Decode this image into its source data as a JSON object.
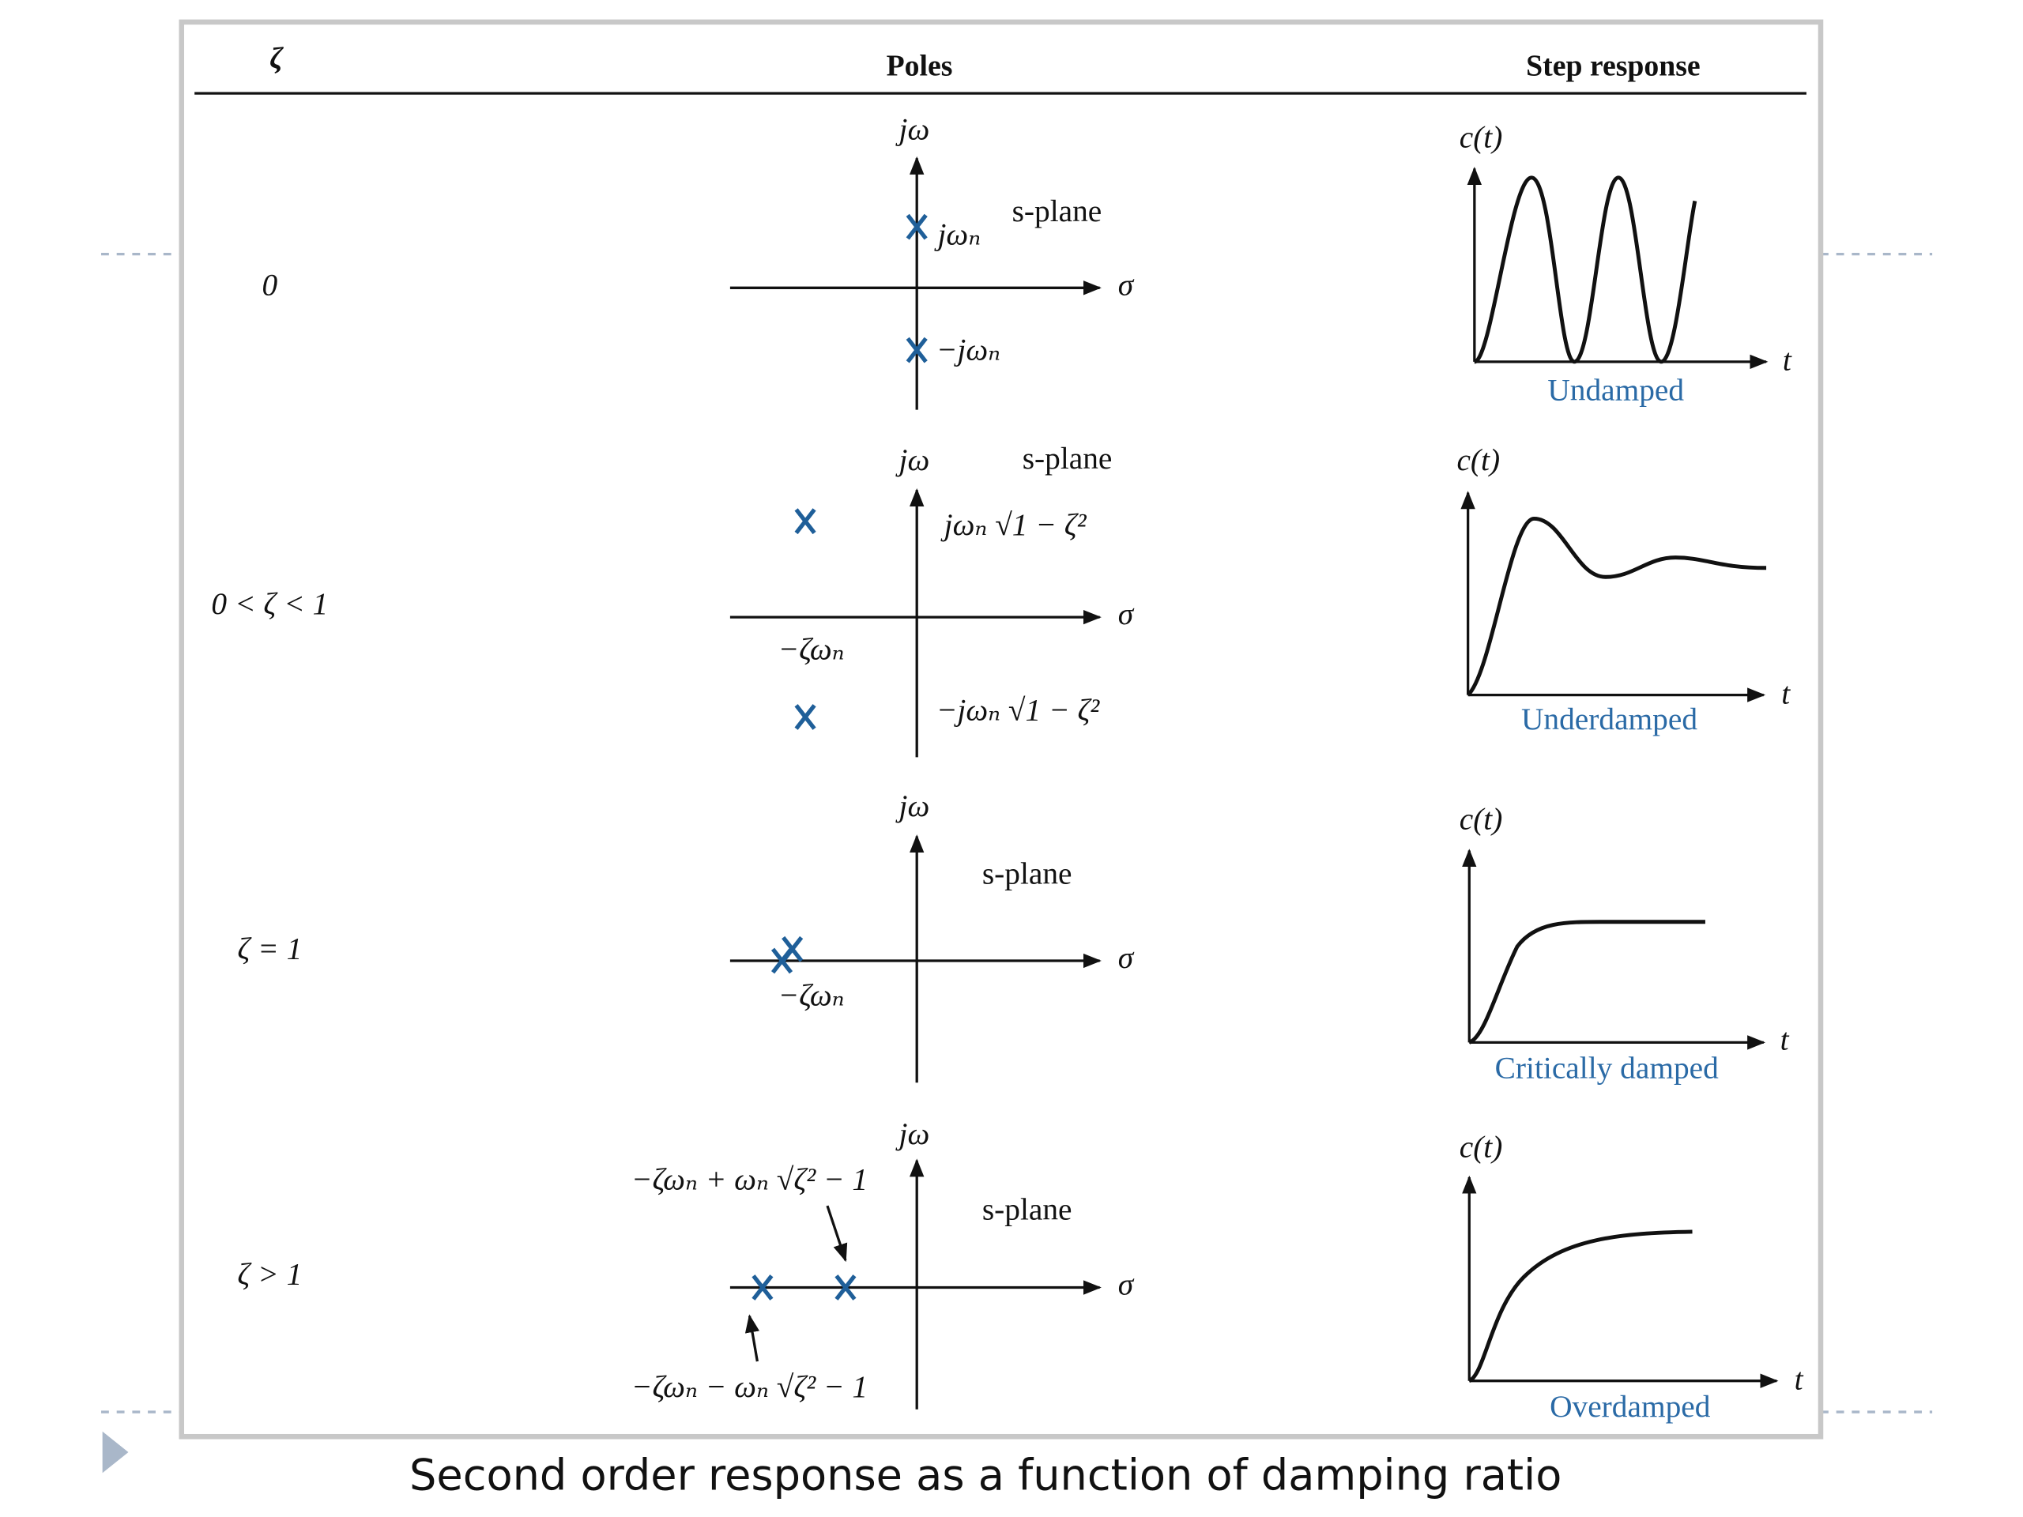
{
  "header": {
    "columns": [
      "ζ",
      "Poles",
      "Step response"
    ]
  },
  "rows": [
    {
      "zeta": "0",
      "poles": {
        "axis_y": "jω",
        "axis_x": "σ",
        "plane": "s-plane",
        "labels": [
          "jωₙ",
          "−jωₙ"
        ]
      },
      "response": {
        "y_label": "c(t)",
        "x_label": "t",
        "name": "Undamped"
      }
    },
    {
      "zeta": "0 < ζ < 1",
      "poles": {
        "axis_y": "jω",
        "axis_x": "σ",
        "plane": "s-plane",
        "labels": [
          "jωₙ √1 − ζ²",
          "−ζωₙ",
          "−jωₙ √1 − ζ²"
        ]
      },
      "response": {
        "y_label": "c(t)",
        "x_label": "t",
        "name": "Underdamped"
      }
    },
    {
      "zeta": "ζ = 1",
      "poles": {
        "axis_y": "jω",
        "axis_x": "σ",
        "plane": "s-plane",
        "labels": [
          "−ζωₙ"
        ]
      },
      "response": {
        "y_label": "c(t)",
        "x_label": "t",
        "name": "Critically damped"
      }
    },
    {
      "zeta": "ζ > 1",
      "poles": {
        "axis_y": "jω",
        "axis_x": "σ",
        "plane": "s-plane",
        "labels": [
          "−ζωₙ + ωₙ √ζ² − 1",
          "−ζωₙ − ωₙ √ζ² − 1"
        ]
      },
      "response": {
        "y_label": "c(t)",
        "x_label": "t",
        "name": "Overdamped"
      }
    }
  ],
  "caption": "Second order response as a function of damping ratio"
}
